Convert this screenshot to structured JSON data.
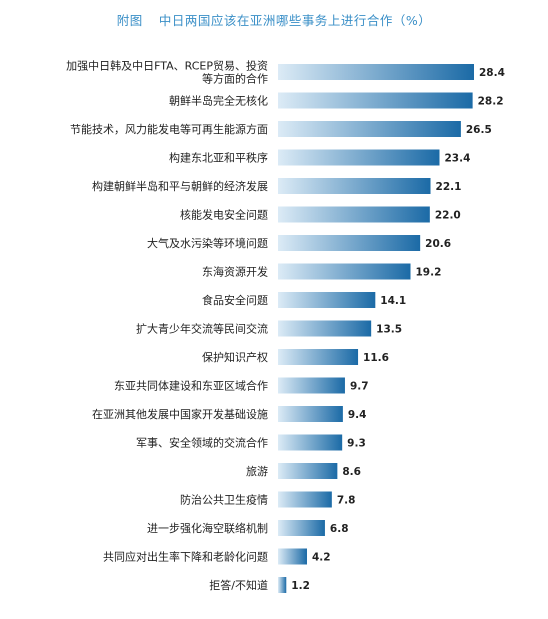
{
  "title_prefix": "附图",
  "title_text": "中日两国应该在亚洲哪些事务上进行合作（%）",
  "chart_data": {
    "type": "bar",
    "orientation": "horizontal",
    "title": "附图   中日两国应该在亚洲哪些事务上进行合作（%）",
    "xlabel": "",
    "ylabel": "",
    "grid": false,
    "categories": [
      [
        "加强中日韩及中日FTA、RCEP贸易、投资",
        "等方面的合作"
      ],
      [
        "朝鲜半岛完全无核化"
      ],
      [
        "节能技术，风力能发电等可再生能源方面"
      ],
      [
        "构建东北亚和平秩序"
      ],
      [
        "构建朝鲜半岛和平与朝鲜的经济发展"
      ],
      [
        "核能发电安全问题"
      ],
      [
        "大气及水污染等环境问题"
      ],
      [
        "东海资源开发"
      ],
      [
        "食品安全问题"
      ],
      [
        "扩大青少年交流等民间交流"
      ],
      [
        "保护知识产权"
      ],
      [
        "东亚共同体建设和东亚区域合作"
      ],
      [
        "在亚洲其他发展中国家开发基础设施"
      ],
      [
        "军事、安全领域的交流合作"
      ],
      [
        "旅游"
      ],
      [
        "防治公共卫生疫情"
      ],
      [
        "进一步强化海空联络机制"
      ],
      [
        "共同应对出生率下降和老龄化问题"
      ],
      [
        "拒答/不知道"
      ]
    ],
    "values": [
      28.4,
      28.2,
      26.5,
      23.4,
      22.1,
      22.0,
      20.6,
      19.2,
      14.1,
      13.5,
      11.6,
      9.7,
      9.4,
      9.3,
      8.6,
      7.8,
      6.8,
      4.2,
      1.2
    ],
    "value_labels": [
      "28.4",
      "28.2",
      "26.5",
      "23.4",
      "22.1",
      "22.0",
      "20.6",
      "19.2",
      "14.1",
      "13.5",
      "11.6",
      "9.7",
      "9.4",
      "9.3",
      "8.6",
      "7.8",
      "6.8",
      "4.2",
      "1.2"
    ],
    "xlim": [
      0,
      28.4
    ],
    "colors": {
      "bar_light": "#dcebf6",
      "bar_dark": "#1b6aa6",
      "title": "#3a8fc7",
      "text": "#222222"
    }
  }
}
